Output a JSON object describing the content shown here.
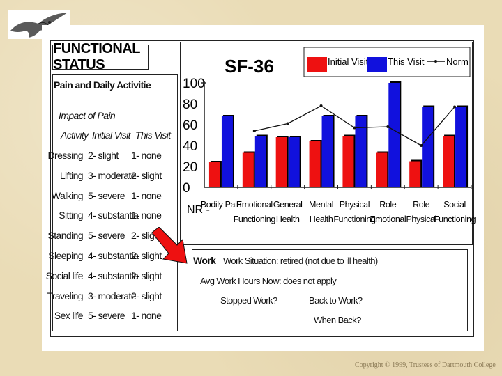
{
  "functional_status": {
    "title": "FUNCTIONAL STATUS",
    "pain_title": "Pain and Daily Activitie",
    "impact_title": "Impact of Pain",
    "col_activity": "Activity",
    "col_initial": "Initial Visit",
    "col_this": "This Visit",
    "rows": [
      {
        "activity": "Dressing",
        "initial": "2- slight",
        "this": "1- none"
      },
      {
        "activity": "Lifting",
        "initial": "3- moderate",
        "this": "2- slight"
      },
      {
        "activity": "Walking",
        "initial": "5- severe",
        "this": "1- none"
      },
      {
        "activity": "Sitting",
        "initial": "4- substantia",
        "this": "1- none"
      },
      {
        "activity": "Standing",
        "initial": "5- severe",
        "this": "2- slight"
      },
      {
        "activity": "Sleeping",
        "initial": "4- substantia",
        "this": "2- slight"
      },
      {
        "activity": "Social life",
        "initial": "4- substantia",
        "this": "2- slight"
      },
      {
        "activity": "Traveling",
        "initial": "3- moderate",
        "this": "2- slight"
      },
      {
        "activity": "Sex life",
        "initial": "5- severe",
        "this": "1- none"
      }
    ]
  },
  "work": {
    "title": "Work",
    "situation": "Work Situation: retired (not due to ill health)",
    "avg_hours": "Avg Work Hours Now: does not apply",
    "stopped": "Stopped Work?",
    "back": "Back to Work?",
    "when_back": "When Back?"
  },
  "copyright": "Copyright © 1999, Trustees of Dartmouth College",
  "colors": {
    "initial": "#ee1111",
    "this": "#1111dd",
    "norm": "#111111",
    "arrow": "#ee1111"
  },
  "chart_data": {
    "type": "bar",
    "title": "SF-36",
    "categories": [
      "Bodily Pain",
      "Emotional Functioning",
      "General Health",
      "Mental Health",
      "Physical Functioning",
      "Role Emotional",
      "Role Physical",
      "Social Functioning"
    ],
    "category_lines": [
      [
        "Bodily Pain"
      ],
      [
        "Emotional",
        "Functioning"
      ],
      [
        "General",
        "Health"
      ],
      [
        "Mental",
        "Health"
      ],
      [
        "Physical",
        "Functioning"
      ],
      [
        "Role",
        "Emotional"
      ],
      [
        "Role",
        "Physical"
      ],
      [
        "Social",
        "Functioning"
      ]
    ],
    "series": [
      {
        "name": "Initial Visit",
        "values": [
          24,
          33,
          48,
          44,
          49,
          33,
          25,
          49
        ]
      },
      {
        "name": "This Visit",
        "values": [
          68,
          49,
          48,
          68,
          68,
          100,
          77,
          77
        ]
      },
      {
        "name": "Norm",
        "values": [
          null,
          54,
          61,
          78,
          57,
          58,
          40,
          77
        ]
      }
    ],
    "ylim": [
      0,
      100
    ],
    "yticks": [
      "100",
      "80",
      "60",
      "40",
      "20",
      "0"
    ],
    "ytick_values": [
      100,
      80,
      60,
      40,
      20,
      0
    ],
    "nr_label": "NR",
    "legend_position": "top-right"
  }
}
